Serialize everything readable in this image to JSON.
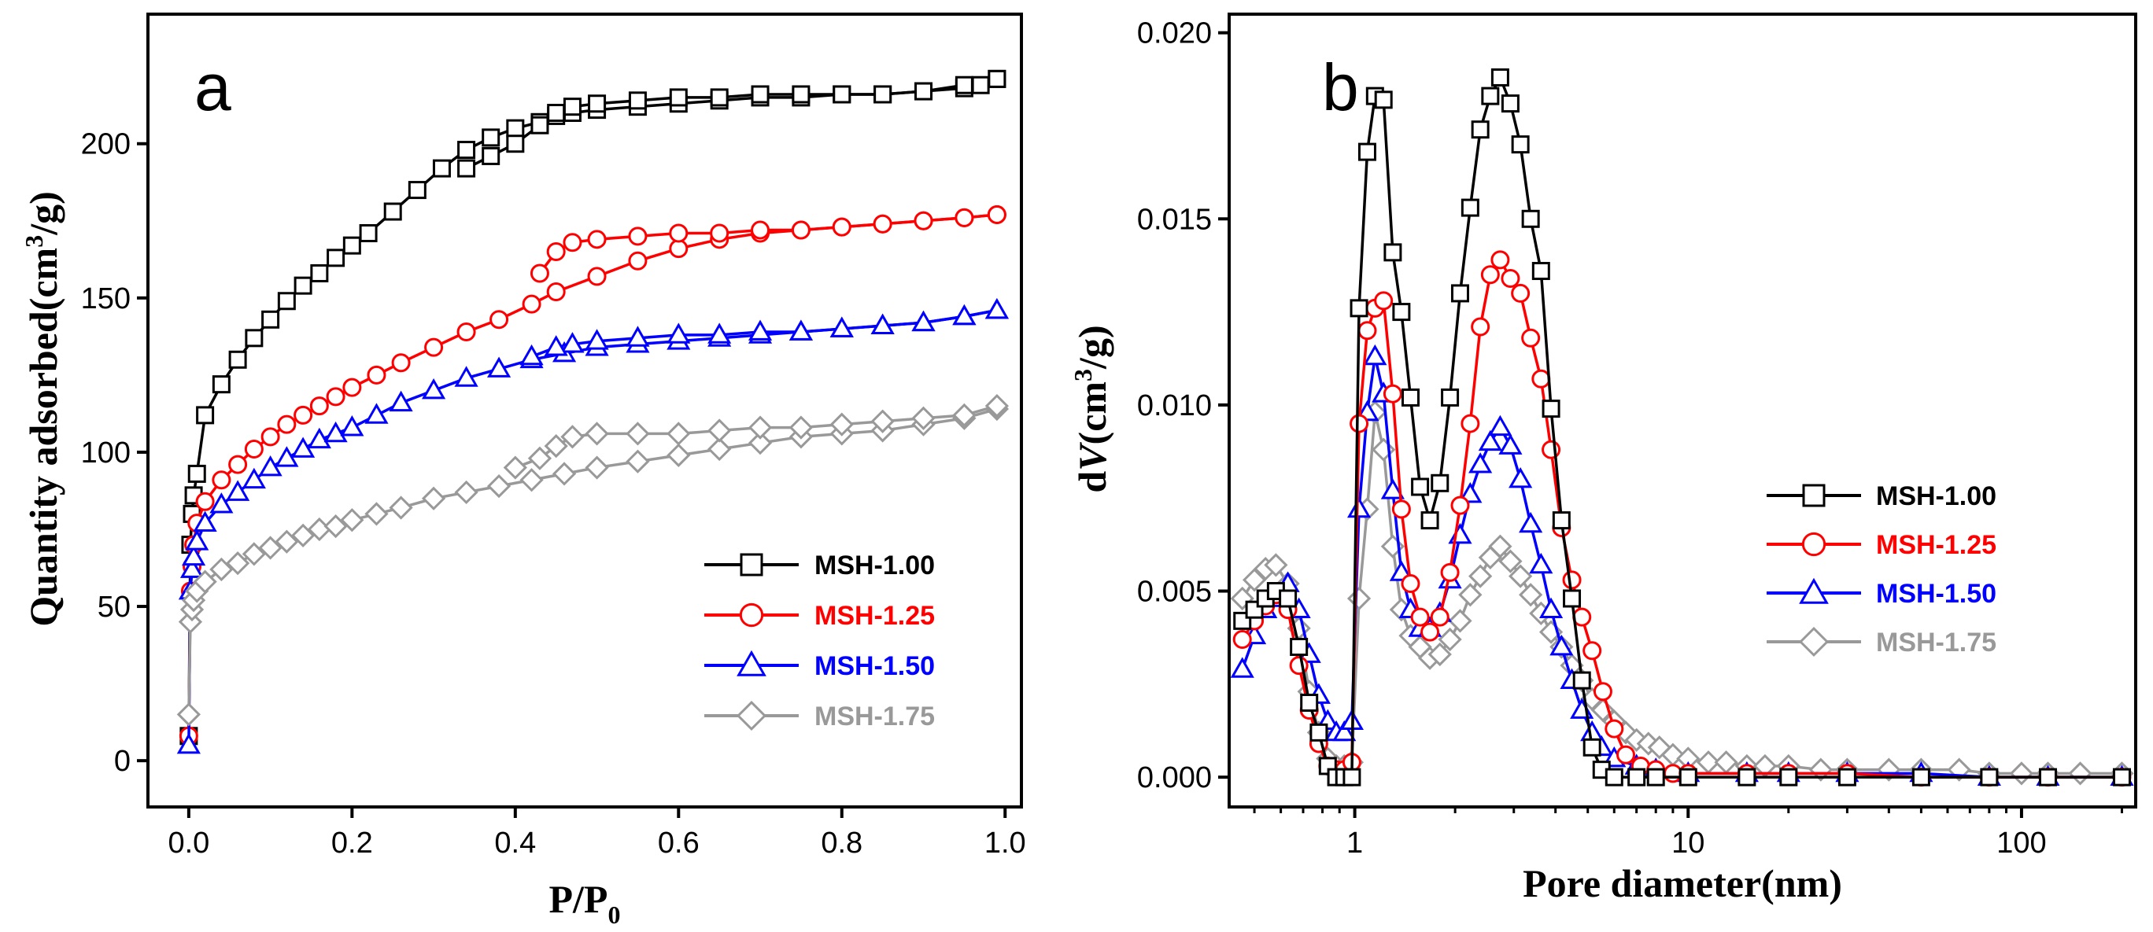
{
  "chart_data": [
    {
      "type": "scatter",
      "panel": "a",
      "xlabel": "P/P",
      "xlabel_sub": "0",
      "ylabel": "Quantity adsorbed(cm",
      "ylabel_sup": "3",
      "ylabel_tail": "/g)",
      "xlim": [
        -0.05,
        1.02
      ],
      "ylim": [
        -15,
        242
      ],
      "xticks": [
        0.0,
        0.2,
        0.4,
        0.6,
        0.8,
        1.0
      ],
      "xtick_labels": [
        "0.0",
        "0.2",
        "0.4",
        "0.6",
        "0.8",
        "1.0"
      ],
      "yticks": [
        0,
        50,
        100,
        150,
        200
      ],
      "ytick_labels": [
        "0",
        "50",
        "100",
        "150",
        "200"
      ],
      "legend_position": "lower-right",
      "series": [
        {
          "name": "MSH-1.00",
          "color": "#000000",
          "marker": "square",
          "adsorption": {
            "x": [
              0.0,
              0.002,
              0.004,
              0.006,
              0.01,
              0.02,
              0.04,
              0.06,
              0.08,
              0.1,
              0.12,
              0.14,
              0.16,
              0.18,
              0.2,
              0.22,
              0.25,
              0.28,
              0.31,
              0.34,
              0.37,
              0.4,
              0.43,
              0.45,
              0.47,
              0.5,
              0.55,
              0.6,
              0.65,
              0.7,
              0.75,
              0.8,
              0.85,
              0.9,
              0.95,
              0.97,
              0.99
            ],
            "y": [
              8,
              70,
              80,
              86,
              93,
              112,
              122,
              130,
              137,
              143,
              149,
              154,
              158,
              163,
              167,
              171,
              178,
              185,
              192,
              198,
              202,
              205,
              207,
              209,
              210,
              211,
              212,
              213,
              214,
              215,
              215,
              216,
              216,
              217,
              218,
              219,
              221
            ]
          },
          "desorption": {
            "x": [
              0.99,
              0.95,
              0.9,
              0.85,
              0.8,
              0.75,
              0.7,
              0.65,
              0.6,
              0.55,
              0.5,
              0.47,
              0.45,
              0.43,
              0.4,
              0.37,
              0.34
            ],
            "y": [
              221,
              219,
              217,
              216,
              216,
              216,
              216,
              215,
              215,
              214,
              213,
              212,
              210,
              206,
              200,
              196,
              192
            ]
          }
        },
        {
          "name": "MSH-1.25",
          "color": "#ff0000",
          "marker": "circle",
          "adsorption": {
            "x": [
              0.0,
              0.002,
              0.004,
              0.006,
              0.01,
              0.02,
              0.04,
              0.06,
              0.08,
              0.1,
              0.12,
              0.14,
              0.16,
              0.18,
              0.2,
              0.23,
              0.26,
              0.3,
              0.34,
              0.38,
              0.42,
              0.45,
              0.5,
              0.55,
              0.6,
              0.65,
              0.7,
              0.75,
              0.8,
              0.85,
              0.9,
              0.95,
              0.99
            ],
            "y": [
              8,
              55,
              63,
              70,
              77,
              84,
              91,
              96,
              101,
              105,
              109,
              112,
              115,
              118,
              121,
              125,
              129,
              134,
              139,
              143,
              148,
              152,
              157,
              162,
              166,
              169,
              171,
              172,
              173,
              174,
              175,
              176,
              177
            ]
          },
          "desorption": {
            "x": [
              0.99,
              0.95,
              0.9,
              0.85,
              0.8,
              0.75,
              0.7,
              0.65,
              0.6,
              0.55,
              0.5,
              0.47,
              0.45,
              0.43
            ],
            "y": [
              177,
              176,
              175,
              174,
              173,
              172,
              172,
              171,
              171,
              170,
              169,
              168,
              165,
              158
            ]
          }
        },
        {
          "name": "MSH-1.50",
          "color": "#0000ff",
          "marker": "triangle",
          "adsorption": {
            "x": [
              0.0,
              0.002,
              0.004,
              0.006,
              0.01,
              0.02,
              0.04,
              0.06,
              0.08,
              0.1,
              0.12,
              0.14,
              0.16,
              0.18,
              0.2,
              0.23,
              0.26,
              0.3,
              0.34,
              0.38,
              0.42,
              0.46,
              0.5,
              0.55,
              0.6,
              0.65,
              0.7,
              0.75,
              0.8,
              0.85,
              0.9,
              0.95,
              0.99
            ],
            "y": [
              5,
              55,
              62,
              66,
              71,
              77,
              83,
              87,
              91,
              95,
              98,
              101,
              104,
              106,
              108,
              112,
              116,
              120,
              124,
              127,
              130,
              132,
              134,
              135,
              136,
              137,
              138,
              139,
              140,
              141,
              142,
              144,
              146
            ]
          },
          "desorption": {
            "x": [
              0.99,
              0.95,
              0.9,
              0.85,
              0.8,
              0.75,
              0.7,
              0.65,
              0.6,
              0.55,
              0.5,
              0.47,
              0.45,
              0.42
            ],
            "y": [
              146,
              144,
              142,
              141,
              140,
              139,
              139,
              138,
              138,
              137,
              136,
              135,
              134,
              131
            ]
          }
        },
        {
          "name": "MSH-1.75",
          "color": "#999999",
          "marker": "diamond",
          "adsorption": {
            "x": [
              0.0,
              0.002,
              0.004,
              0.006,
              0.01,
              0.02,
              0.04,
              0.06,
              0.08,
              0.1,
              0.12,
              0.14,
              0.16,
              0.18,
              0.2,
              0.23,
              0.26,
              0.3,
              0.34,
              0.38,
              0.42,
              0.46,
              0.5,
              0.55,
              0.6,
              0.65,
              0.7,
              0.75,
              0.8,
              0.85,
              0.9,
              0.95,
              0.99
            ],
            "y": [
              15,
              45,
              49,
              52,
              55,
              58,
              62,
              64,
              67,
              69,
              71,
              73,
              75,
              76,
              78,
              80,
              82,
              85,
              87,
              89,
              91,
              93,
              95,
              97,
              99,
              101,
              103,
              105,
              106,
              107,
              109,
              111,
              114
            ]
          },
          "desorption": {
            "x": [
              0.99,
              0.95,
              0.9,
              0.85,
              0.8,
              0.75,
              0.7,
              0.65,
              0.6,
              0.55,
              0.5,
              0.47,
              0.45,
              0.43,
              0.4
            ],
            "y": [
              115,
              112,
              111,
              110,
              109,
              108,
              108,
              107,
              106,
              106,
              106,
              105,
              102,
              98,
              95
            ]
          }
        }
      ]
    },
    {
      "type": "line",
      "panel": "b",
      "xscale": "log",
      "xlabel": "Pore diameter(nm)",
      "ylabel_pre": "d",
      "ylabel_var": "V",
      "ylabel": "(cm",
      "ylabel_sup": "3",
      "ylabel_tail": "/g)",
      "xlim": [
        0.42,
        220
      ],
      "ylim": [
        -0.0008,
        0.0205
      ],
      "xticks": [
        1,
        10,
        100
      ],
      "xtick_labels": [
        "1",
        "10",
        "100"
      ],
      "yticks": [
        0.0,
        0.005,
        0.01,
        0.015,
        0.02
      ],
      "ytick_labels": [
        "0.000",
        "0.005",
        "0.010",
        "0.015",
        "0.020"
      ],
      "legend_position": "right",
      "series": [
        {
          "name": "MSH-1.00",
          "color": "#000000",
          "marker": "square",
          "x": [
            0.46,
            0.5,
            0.54,
            0.58,
            0.63,
            0.68,
            0.73,
            0.78,
            0.83,
            0.88,
            0.93,
            0.98,
            1.03,
            1.09,
            1.15,
            1.22,
            1.3,
            1.38,
            1.47,
            1.57,
            1.68,
            1.8,
            1.93,
            2.07,
            2.22,
            2.38,
            2.55,
            2.73,
            2.93,
            3.14,
            3.37,
            3.62,
            3.88,
            4.17,
            4.48,
            4.8,
            5.15,
            5.5,
            6.0,
            7.0,
            8.0,
            10,
            15,
            20,
            30,
            50,
            80,
            120,
            200
          ],
          "y": [
            0.0042,
            0.0045,
            0.0048,
            0.005,
            0.0048,
            0.0035,
            0.002,
            0.0012,
            0.0003,
            0.0,
            0.0,
            0.0,
            0.0126,
            0.0168,
            0.0183,
            0.0182,
            0.0141,
            0.0125,
            0.0102,
            0.0078,
            0.0069,
            0.0079,
            0.0102,
            0.013,
            0.0153,
            0.0174,
            0.0183,
            0.0188,
            0.0181,
            0.017,
            0.015,
            0.0136,
            0.0099,
            0.0069,
            0.0048,
            0.0026,
            0.0008,
            0.0002,
            0.0,
            0.0,
            0.0,
            0.0,
            0.0,
            0.0,
            0.0,
            0.0,
            0.0,
            0.0,
            0.0
          ]
        },
        {
          "name": "MSH-1.25",
          "color": "#ff0000",
          "marker": "circle",
          "x": [
            0.46,
            0.5,
            0.54,
            0.58,
            0.63,
            0.68,
            0.73,
            0.78,
            0.83,
            0.88,
            0.93,
            0.98,
            1.03,
            1.09,
            1.15,
            1.22,
            1.3,
            1.38,
            1.47,
            1.57,
            1.68,
            1.8,
            1.93,
            2.07,
            2.22,
            2.38,
            2.55,
            2.73,
            2.93,
            3.14,
            3.37,
            3.62,
            3.88,
            4.17,
            4.48,
            4.8,
            5.15,
            5.55,
            6.0,
            6.5,
            7.2,
            8.0,
            9.0,
            10,
            15,
            20,
            30,
            50,
            80,
            120,
            200
          ],
          "y": [
            0.0037,
            0.0042,
            0.0046,
            0.0049,
            0.0045,
            0.003,
            0.0018,
            0.0009,
            0.0003,
            0.0002,
            0.0002,
            0.0004,
            0.0095,
            0.012,
            0.0126,
            0.0128,
            0.0103,
            0.0072,
            0.0052,
            0.0043,
            0.0039,
            0.0043,
            0.0055,
            0.0073,
            0.0095,
            0.0121,
            0.0135,
            0.0139,
            0.0134,
            0.013,
            0.0118,
            0.0107,
            0.0088,
            0.0067,
            0.0053,
            0.0043,
            0.0034,
            0.0023,
            0.0013,
            0.0006,
            0.0003,
            0.0002,
            0.0001,
            0.0001,
            0.0001,
            0.0001,
            0.0001,
            0.0,
            0.0,
            0.0,
            0.0
          ]
        },
        {
          "name": "MSH-1.50",
          "color": "#0000ff",
          "marker": "triangle",
          "x": [
            0.46,
            0.5,
            0.54,
            0.58,
            0.63,
            0.68,
            0.73,
            0.78,
            0.83,
            0.88,
            0.93,
            0.98,
            1.03,
            1.09,
            1.15,
            1.22,
            1.3,
            1.38,
            1.47,
            1.57,
            1.68,
            1.8,
            1.93,
            2.07,
            2.22,
            2.38,
            2.55,
            2.73,
            2.93,
            3.14,
            3.37,
            3.62,
            3.88,
            4.17,
            4.48,
            4.8,
            5.15,
            5.5,
            6.0,
            7.0,
            8.0,
            10,
            15,
            20,
            30,
            50,
            80,
            120,
            200
          ],
          "y": [
            0.0029,
            0.0038,
            0.0045,
            0.0048,
            0.0052,
            0.0045,
            0.0033,
            0.0022,
            0.0015,
            0.0012,
            0.0012,
            0.0015,
            0.0072,
            0.0098,
            0.0113,
            0.0103,
            0.0077,
            0.0055,
            0.0045,
            0.004,
            0.004,
            0.0044,
            0.0053,
            0.0065,
            0.0076,
            0.0084,
            0.009,
            0.0094,
            0.0089,
            0.008,
            0.0068,
            0.0057,
            0.0045,
            0.0035,
            0.0026,
            0.0018,
            0.0012,
            0.0008,
            0.0005,
            0.0003,
            0.0002,
            0.0001,
            0.0001,
            0.0001,
            0.0001,
            0.0001,
            0.0,
            0.0,
            0.0
          ]
        },
        {
          "name": "MSH-1.75",
          "color": "#999999",
          "marker": "diamond",
          "x": [
            0.46,
            0.5,
            0.54,
            0.58,
            0.63,
            0.68,
            0.73,
            0.78,
            0.83,
            0.88,
            0.93,
            0.98,
            1.03,
            1.09,
            1.15,
            1.22,
            1.3,
            1.38,
            1.47,
            1.57,
            1.68,
            1.8,
            1.93,
            2.07,
            2.22,
            2.38,
            2.55,
            2.73,
            2.93,
            3.14,
            3.37,
            3.62,
            3.88,
            4.17,
            4.48,
            4.8,
            5.15,
            5.55,
            6.0,
            6.5,
            7.0,
            7.6,
            8.2,
            9.0,
            10,
            11.5,
            13,
            15,
            17,
            20,
            25,
            30,
            40,
            50,
            65,
            80,
            100,
            120,
            150,
            200
          ],
          "y": [
            0.0048,
            0.0053,
            0.0056,
            0.0057,
            0.0052,
            0.004,
            0.0023,
            0.0012,
            0.0005,
            0.0003,
            0.0003,
            0.0004,
            0.0048,
            0.0072,
            0.0098,
            0.0088,
            0.0062,
            0.0045,
            0.0038,
            0.0035,
            0.0032,
            0.0033,
            0.0037,
            0.0042,
            0.0049,
            0.0054,
            0.0059,
            0.0062,
            0.0058,
            0.0054,
            0.0049,
            0.0044,
            0.0039,
            0.0035,
            0.003,
            0.0026,
            0.0021,
            0.0018,
            0.0015,
            0.0012,
            0.001,
            0.0009,
            0.0008,
            0.0006,
            0.0005,
            0.0004,
            0.0004,
            0.0003,
            0.0003,
            0.0003,
            0.0002,
            0.0002,
            0.0002,
            0.0002,
            0.0002,
            0.0001,
            0.0001,
            0.0001,
            0.0001,
            0.0001
          ]
        }
      ]
    }
  ],
  "panel_labels": {
    "a": "a",
    "b": "b"
  }
}
